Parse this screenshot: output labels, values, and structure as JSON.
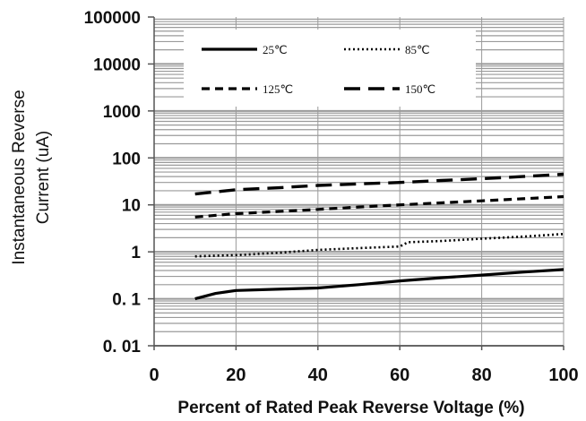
{
  "chart_data": {
    "type": "line",
    "xlabel": "Percent of Rated Peak  Reverse Voltage (%)",
    "ylabel_lines": [
      "Instantaneous Reverse",
      "Current (uA)"
    ],
    "xlim": [
      0,
      100
    ],
    "ylim": [
      0.01,
      100000
    ],
    "yscale": "log",
    "x_ticks": [
      "0",
      "20",
      "40",
      "60",
      "80",
      "100"
    ],
    "y_ticks": [
      "100000",
      "10000",
      "1000",
      "100",
      "10",
      "1",
      "0. 1",
      "0. 01"
    ],
    "grid": true,
    "legend_position": "top",
    "series": [
      {
        "name": "25℃",
        "style": "solid",
        "x": [
          10,
          15,
          20,
          30,
          40,
          50,
          60,
          70,
          80,
          90,
          100
        ],
        "y": [
          0.1,
          0.13,
          0.15,
          0.16,
          0.17,
          0.2,
          0.24,
          0.28,
          0.32,
          0.37,
          0.42
        ]
      },
      {
        "name": "85℃",
        "style": "dotted",
        "x": [
          10,
          20,
          30,
          40,
          50,
          60,
          62,
          70,
          80,
          90,
          100
        ],
        "y": [
          0.8,
          0.85,
          0.95,
          1.1,
          1.2,
          1.3,
          1.6,
          1.7,
          1.9,
          2.1,
          2.4
        ]
      },
      {
        "name": "125℃",
        "style": "dashed",
        "x": [
          10,
          20,
          30,
          40,
          50,
          60,
          70,
          80,
          90,
          100
        ],
        "y": [
          5.5,
          6.5,
          7.2,
          8.0,
          9.0,
          10.0,
          11.0,
          12.2,
          13.5,
          15.0
        ]
      },
      {
        "name": "150℃",
        "style": "longdash",
        "x": [
          10,
          20,
          30,
          40,
          50,
          60,
          70,
          80,
          90,
          100
        ],
        "y": [
          17,
          21,
          23,
          26,
          28,
          30,
          33,
          36,
          40,
          45
        ]
      }
    ]
  },
  "colors": {
    "line": "#000000",
    "grid": "#9a9a9a",
    "axis": "#555555"
  }
}
